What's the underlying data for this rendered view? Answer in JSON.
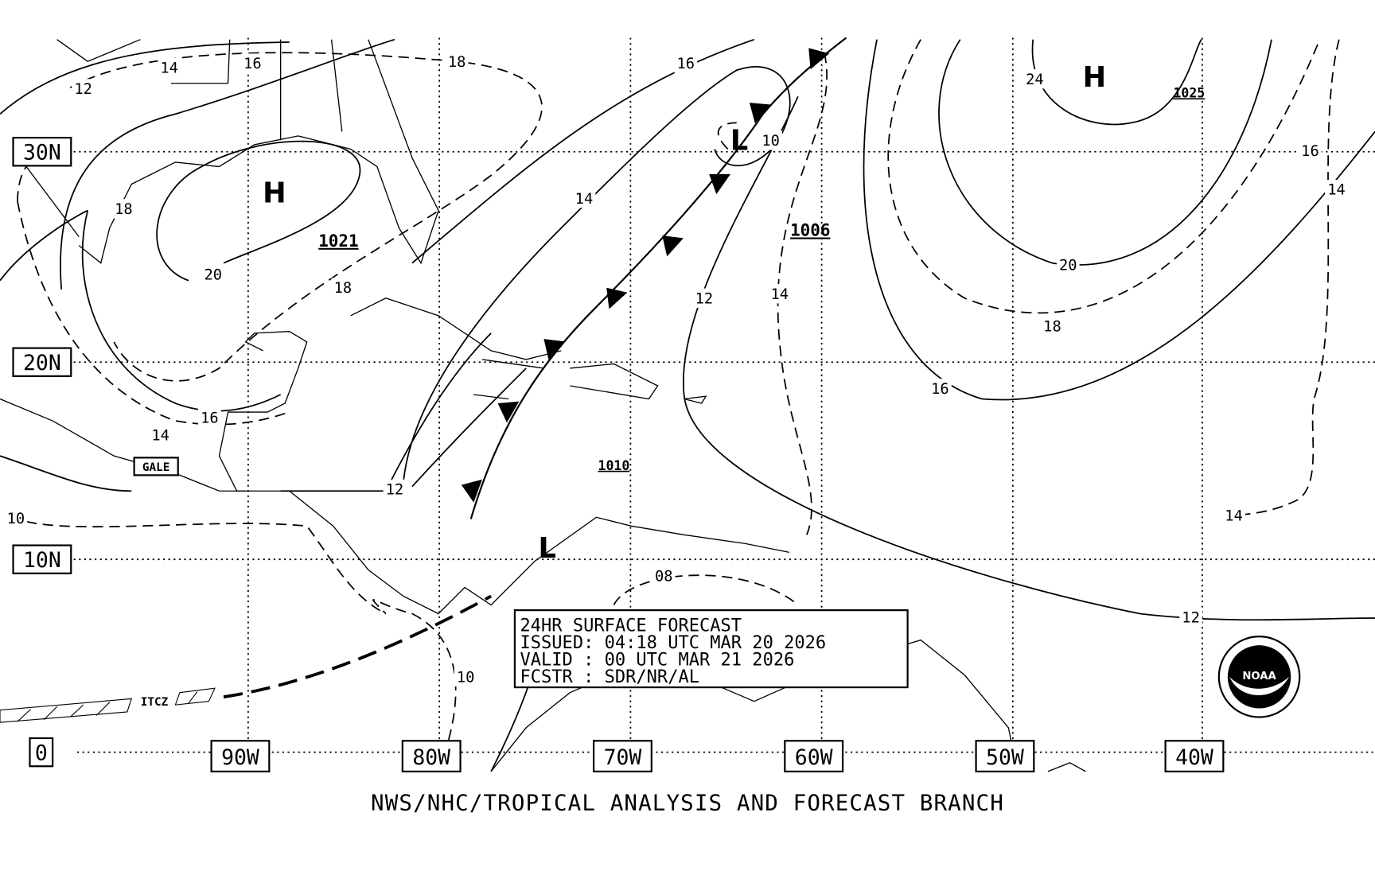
{
  "map": {
    "lat_labels": [
      "30N",
      "20N",
      "10N",
      "0"
    ],
    "lon_labels": [
      "90W",
      "80W",
      "70W",
      "60W",
      "50W",
      "40W"
    ],
    "pressure_centers": [
      {
        "symbol": "H",
        "value": "1021"
      },
      {
        "symbol": "H",
        "value": "1025"
      },
      {
        "symbol": "L"
      },
      {
        "symbol": "L"
      }
    ],
    "pressure_labels": [
      "1006",
      "1010"
    ],
    "isobar_labels": [
      "12",
      "14",
      "16",
      "18",
      "16",
      "24",
      "18",
      "20",
      "18",
      "14",
      "10",
      "12",
      "14",
      "20",
      "18",
      "16",
      "16",
      "14",
      "16",
      "14",
      "12",
      "10",
      "14",
      "12",
      "08",
      "10"
    ],
    "annotations": [
      "GALE",
      "ITCZ"
    ]
  },
  "info_box": {
    "lines": [
      "24HR SURFACE FORECAST",
      "ISSUED: 04:18 UTC MAR 20 2026",
      "VALID : 00 UTC MAR 21 2026",
      "FCSTR : SDR/NR/AL"
    ]
  },
  "footer": "NWS/NHC/TROPICAL ANALYSIS AND FORECAST BRANCH",
  "logo": "NOAA"
}
